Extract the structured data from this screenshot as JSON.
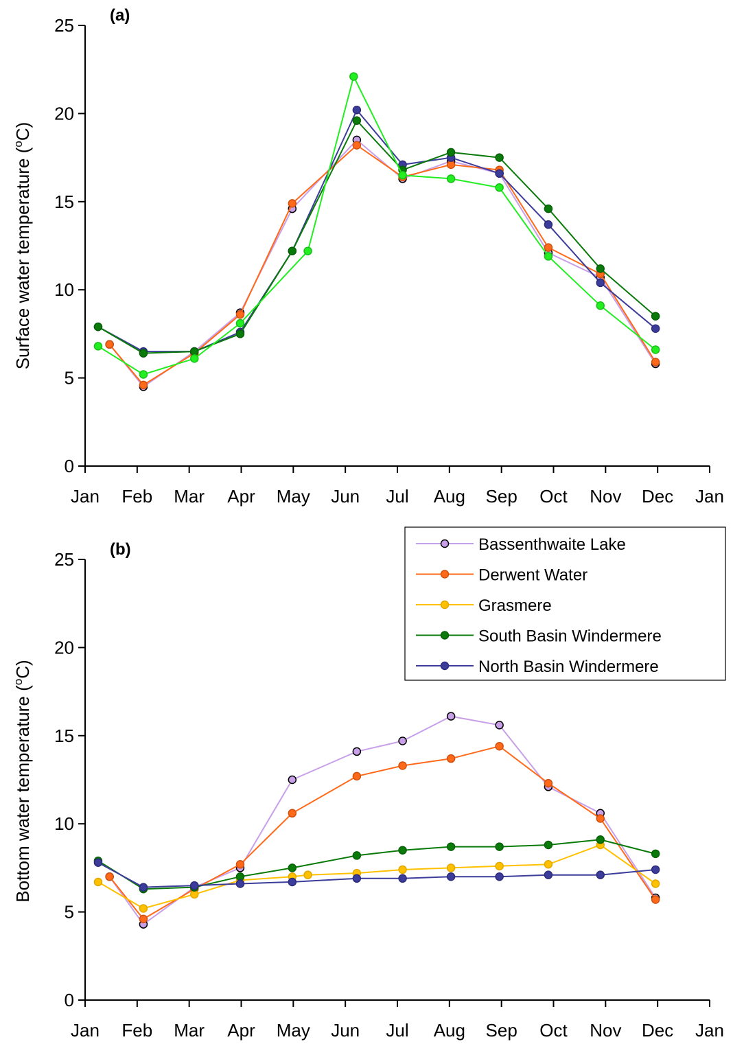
{
  "chart_data": [
    {
      "type": "line",
      "panel_label": "(a)",
      "ylabel_main": "Surface water temperature (",
      "ylabel_sup": "o",
      "ylabel_tail": "C)",
      "ylim": [
        0,
        25
      ],
      "yticks": [
        0,
        5,
        10,
        15,
        20,
        25
      ],
      "xlim": [
        0,
        12
      ],
      "xtick_labels": [
        "Jan",
        "Feb",
        "Mar",
        "Apr",
        "May",
        "Jun",
        "Jul",
        "Aug",
        "Sep",
        "Oct",
        "Nov",
        "Dec",
        "Jan"
      ],
      "series": [
        {
          "name": "Bassenthwaite Lake",
          "color": "#c8a0e8",
          "marker_edge": "#000000",
          "points": [
            [
              0.47,
              6.9
            ],
            [
              1.12,
              4.5
            ],
            [
              2.1,
              6.5
            ],
            [
              2.98,
              8.7
            ],
            [
              3.98,
              14.6
            ],
            [
              5.22,
              18.5
            ],
            [
              6.1,
              16.3
            ],
            [
              7.03,
              17.3
            ],
            [
              7.96,
              16.6
            ],
            [
              8.9,
              12.1
            ],
            [
              9.9,
              10.7
            ],
            [
              10.96,
              5.8
            ]
          ]
        },
        {
          "name": "Derwent Water",
          "color": "#ff6a1a",
          "marker_edge": "#d05010",
          "points": [
            [
              0.47,
              6.9
            ],
            [
              1.12,
              4.6
            ],
            [
              2.1,
              6.4
            ],
            [
              2.98,
              8.6
            ],
            [
              3.98,
              14.9
            ],
            [
              5.22,
              18.2
            ],
            [
              6.1,
              16.4
            ],
            [
              7.03,
              17.1
            ],
            [
              7.96,
              16.8
            ],
            [
              8.9,
              12.4
            ],
            [
              9.9,
              10.9
            ],
            [
              10.96,
              5.9
            ]
          ]
        },
        {
          "name": "North Basin Windermere",
          "color": "#3c3c9a",
          "marker_edge": "#2c2c7a",
          "points": [
            [
              0.25,
              7.9
            ],
            [
              1.12,
              6.5
            ],
            [
              2.1,
              6.5
            ],
            [
              2.98,
              7.6
            ],
            [
              3.98,
              12.2
            ],
            [
              5.22,
              20.2
            ],
            [
              6.1,
              17.1
            ],
            [
              7.03,
              17.5
            ],
            [
              7.96,
              16.6
            ],
            [
              8.9,
              13.7
            ],
            [
              9.9,
              10.4
            ],
            [
              10.96,
              7.8
            ]
          ]
        },
        {
          "name": "South Basin Windermere",
          "color": "#0a7a0a",
          "marker_edge": "#086008",
          "points": [
            [
              0.25,
              7.9
            ],
            [
              1.12,
              6.4
            ],
            [
              2.1,
              6.5
            ],
            [
              2.98,
              7.5
            ],
            [
              3.98,
              12.2
            ],
            [
              5.22,
              19.6
            ],
            [
              6.1,
              16.8
            ],
            [
              7.03,
              17.8
            ],
            [
              7.96,
              17.5
            ],
            [
              8.9,
              14.6
            ],
            [
              9.9,
              11.2
            ],
            [
              10.96,
              8.5
            ]
          ]
        },
        {
          "name": "Grasmere",
          "color": "#22ee22",
          "marker_edge": "#18c018",
          "points": [
            [
              0.25,
              6.8
            ],
            [
              1.12,
              5.2
            ],
            [
              2.1,
              6.1
            ],
            [
              2.98,
              8.1
            ],
            [
              4.28,
              12.2
            ],
            [
              5.16,
              22.1
            ],
            [
              6.1,
              16.5
            ],
            [
              7.03,
              16.3
            ],
            [
              7.96,
              15.8
            ],
            [
              8.9,
              11.9
            ],
            [
              9.9,
              9.1
            ],
            [
              10.96,
              6.6
            ]
          ]
        }
      ]
    },
    {
      "type": "line",
      "panel_label": "(b)",
      "ylabel_main": "Bottom water temperature (",
      "ylabel_sup": "o",
      "ylabel_tail": "C)",
      "ylim": [
        0,
        25
      ],
      "yticks": [
        0,
        5,
        10,
        15,
        20,
        25
      ],
      "xlim": [
        0,
        12
      ],
      "xtick_labels": [
        "Jan",
        "Feb",
        "Mar",
        "Apr",
        "May",
        "Jun",
        "Jul",
        "Aug",
        "Sep",
        "Oct",
        "Nov",
        "Dec",
        "Jan"
      ],
      "legend_position": "top-right",
      "series": [
        {
          "name": "Bassenthwaite Lake",
          "color": "#c8a0e8",
          "marker_edge": "#000000",
          "points": [
            [
              0.47,
              7.0
            ],
            [
              1.12,
              4.3
            ],
            [
              2.1,
              6.4
            ],
            [
              2.98,
              7.5
            ],
            [
              3.98,
              12.5
            ],
            [
              5.22,
              14.1
            ],
            [
              6.1,
              14.7
            ],
            [
              7.03,
              16.1
            ],
            [
              7.96,
              15.6
            ],
            [
              8.9,
              12.1
            ],
            [
              9.9,
              10.6
            ],
            [
              10.96,
              5.8
            ]
          ]
        },
        {
          "name": "Derwent Water",
          "color": "#ff6a1a",
          "marker_edge": "#d05010",
          "points": [
            [
              0.47,
              7.0
            ],
            [
              1.12,
              4.6
            ],
            [
              2.1,
              6.3
            ],
            [
              2.98,
              7.7
            ],
            [
              3.98,
              10.6
            ],
            [
              5.22,
              12.7
            ],
            [
              6.1,
              13.3
            ],
            [
              7.03,
              13.7
            ],
            [
              7.96,
              14.4
            ],
            [
              8.9,
              12.3
            ],
            [
              9.9,
              10.3
            ],
            [
              10.96,
              5.7
            ]
          ]
        },
        {
          "name": "Grasmere",
          "color": "#ffc000",
          "marker_edge": "#e0a800",
          "points": [
            [
              0.25,
              6.7
            ],
            [
              1.12,
              5.2
            ],
            [
              2.1,
              6.0
            ],
            [
              2.98,
              6.8
            ],
            [
              3.98,
              7.0
            ],
            [
              4.28,
              7.1
            ],
            [
              5.22,
              7.2
            ],
            [
              6.1,
              7.4
            ],
            [
              7.03,
              7.5
            ],
            [
              7.96,
              7.6
            ],
            [
              8.9,
              7.7
            ],
            [
              9.9,
              8.8
            ],
            [
              10.96,
              6.6
            ]
          ]
        },
        {
          "name": "South Basin Windermere",
          "color": "#0a7a0a",
          "marker_edge": "#086008",
          "points": [
            [
              0.25,
              7.9
            ],
            [
              1.12,
              6.3
            ],
            [
              2.1,
              6.4
            ],
            [
              2.98,
              7.0
            ],
            [
              3.98,
              7.5
            ],
            [
              5.22,
              8.2
            ],
            [
              6.1,
              8.5
            ],
            [
              7.03,
              8.7
            ],
            [
              7.96,
              8.7
            ],
            [
              8.9,
              8.8
            ],
            [
              9.9,
              9.1
            ],
            [
              10.96,
              8.3
            ]
          ]
        },
        {
          "name": "North Basin Windermere",
          "color": "#3c3c9a",
          "marker_edge": "#2c2c7a",
          "points": [
            [
              0.25,
              7.8
            ],
            [
              1.12,
              6.4
            ],
            [
              2.1,
              6.5
            ],
            [
              2.98,
              6.6
            ],
            [
              3.98,
              6.7
            ],
            [
              5.22,
              6.9
            ],
            [
              6.1,
              6.9
            ],
            [
              7.03,
              7.0
            ],
            [
              7.96,
              7.0
            ],
            [
              8.9,
              7.1
            ],
            [
              9.9,
              7.1
            ],
            [
              10.96,
              7.4
            ]
          ]
        }
      ],
      "legend": [
        {
          "name": "Bassenthwaite Lake",
          "color": "#c8a0e8",
          "marker_edge": "#000000"
        },
        {
          "name": "Derwent Water",
          "color": "#ff6a1a",
          "marker_edge": "#d05010"
        },
        {
          "name": "Grasmere",
          "color": "#ffc000",
          "marker_edge": "#e0a800"
        },
        {
          "name": "South Basin Windermere",
          "color": "#0a7a0a",
          "marker_edge": "#086008"
        },
        {
          "name": "North Basin Windermere",
          "color": "#3c3c9a",
          "marker_edge": "#2c2c7a"
        }
      ]
    }
  ]
}
